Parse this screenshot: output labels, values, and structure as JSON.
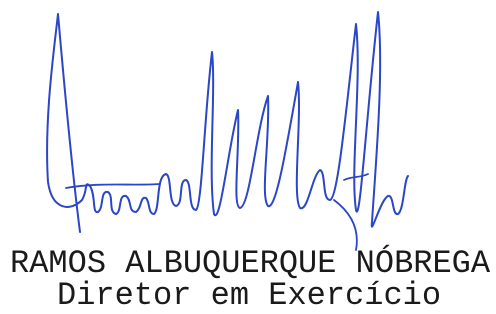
{
  "signature_block": {
    "name": "RAMOS ALBUQUERQUE NÓBREGA",
    "title": "Diretor em Exercício"
  }
}
